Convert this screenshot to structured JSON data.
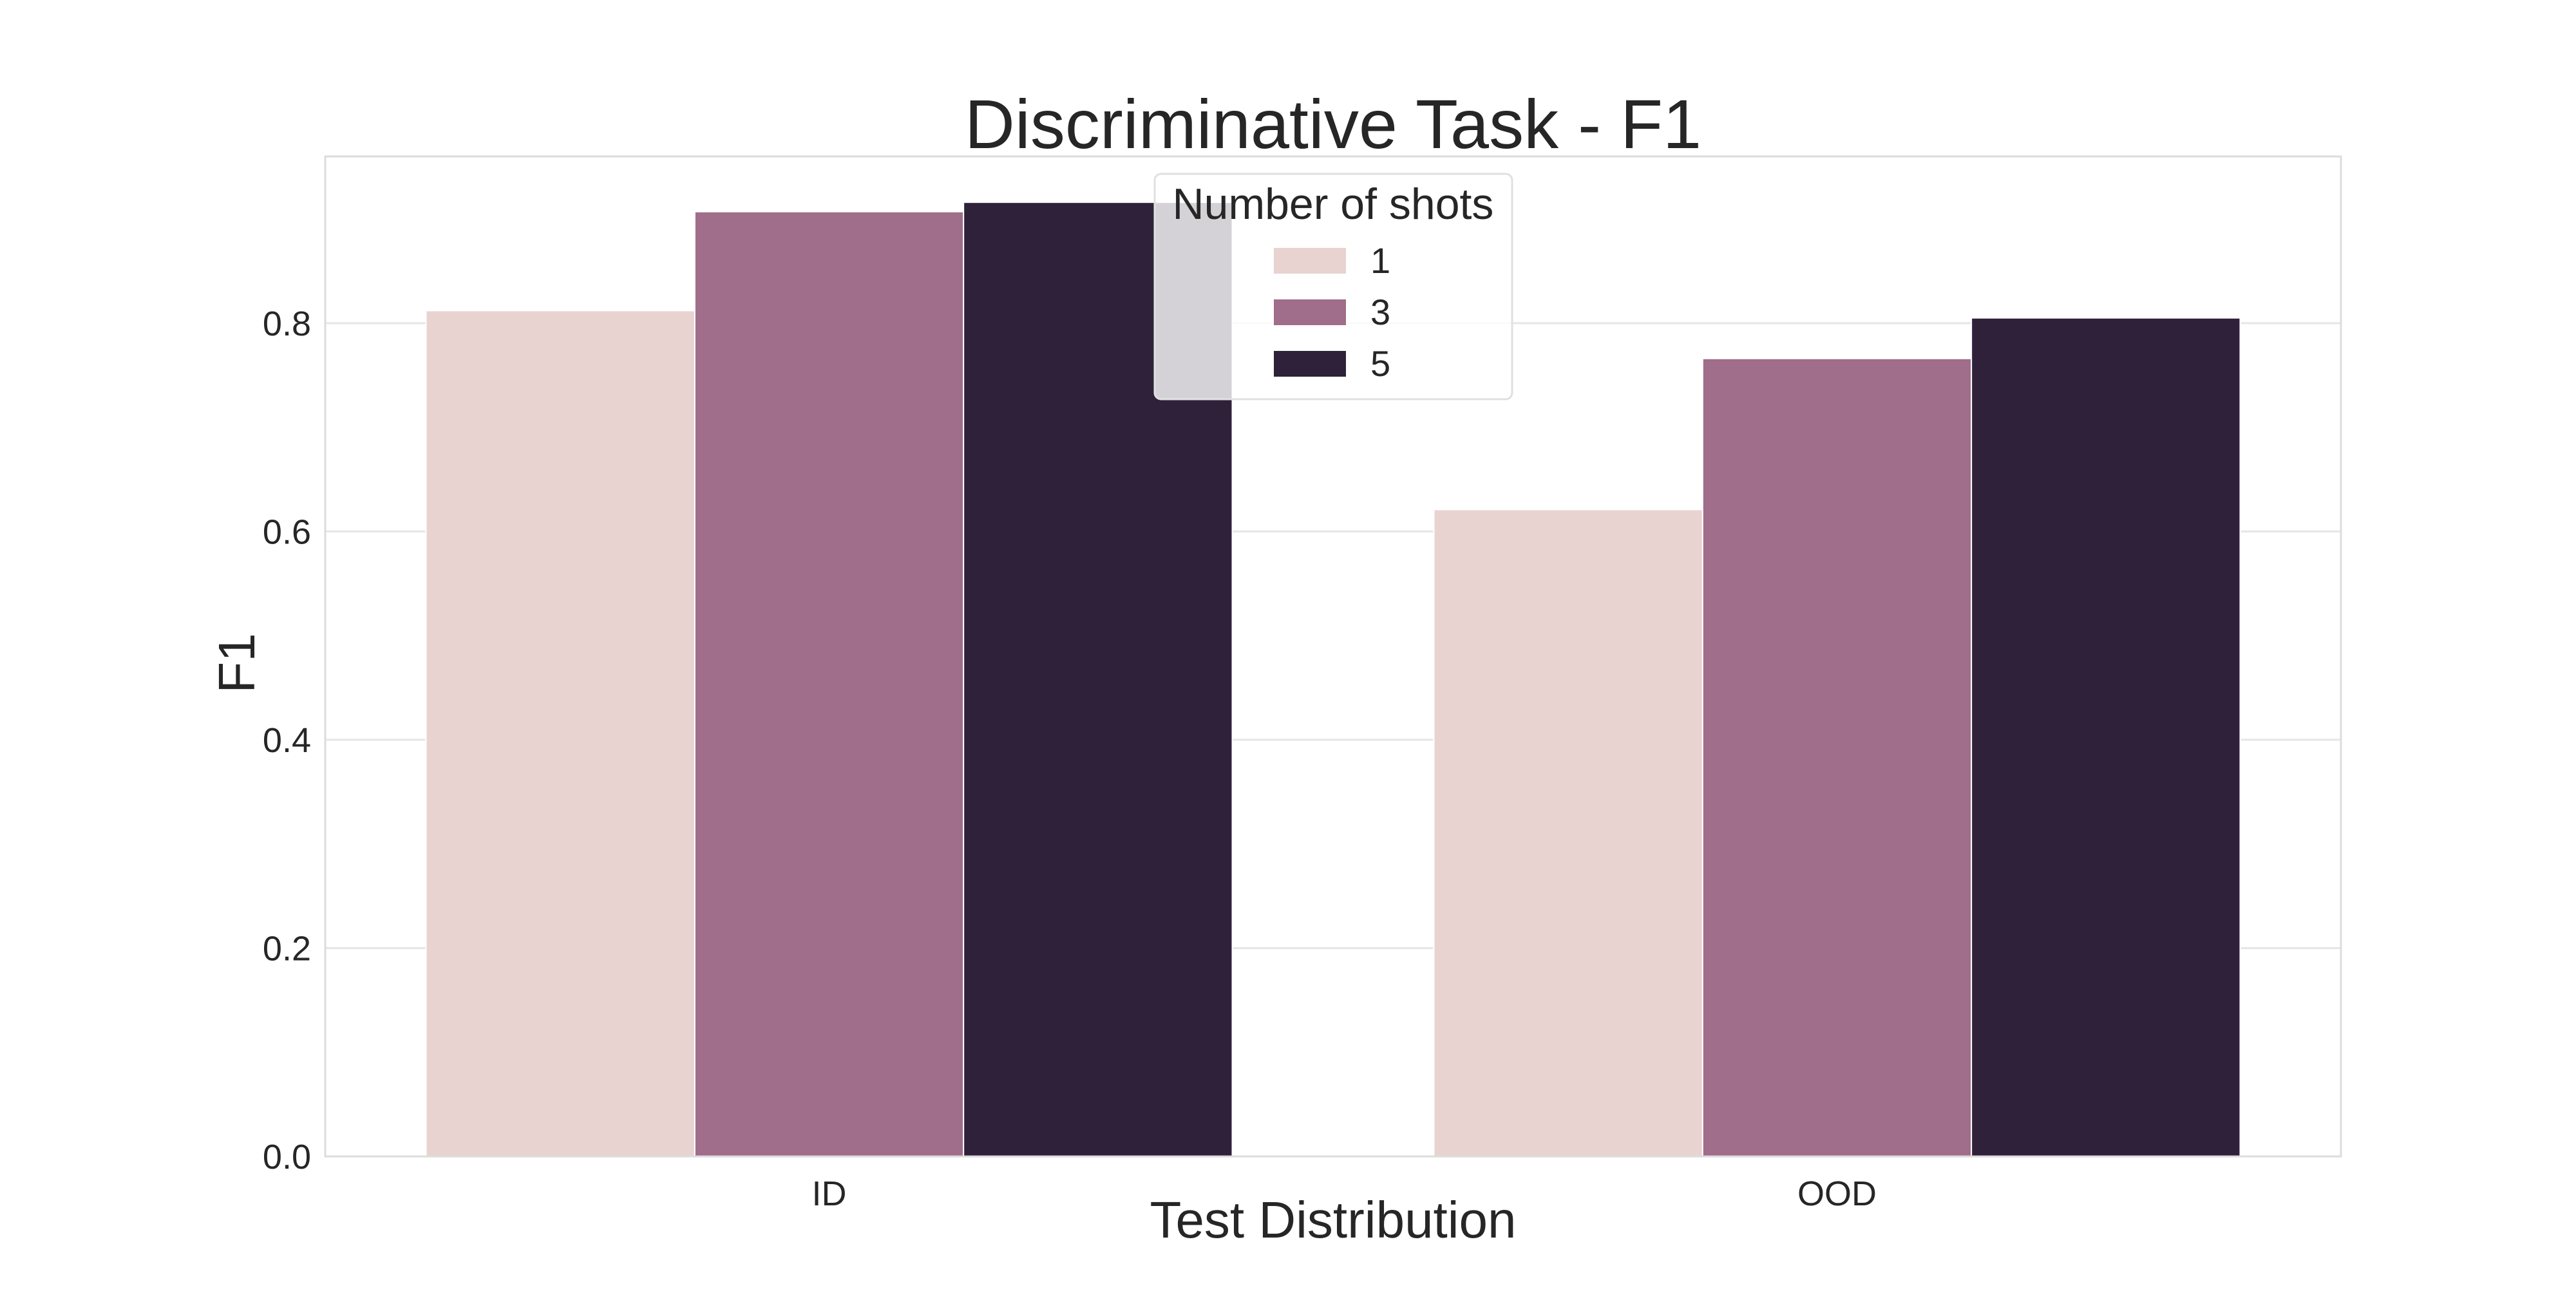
{
  "chart_data": {
    "type": "bar",
    "title": "Discriminative Task - F1",
    "xlabel": "Test Distribution",
    "ylabel": "F1",
    "categories": [
      "ID",
      "OOD"
    ],
    "series": [
      {
        "name": "1",
        "values": [
          0.812,
          0.621
        ],
        "color": "#e8d3d0"
      },
      {
        "name": "3",
        "values": [
          0.907,
          0.766
        ],
        "color": "#a06d8b"
      },
      {
        "name": "5",
        "values": [
          0.916,
          0.805
        ],
        "color": "#2e2139"
      }
    ],
    "ylim": [
      0,
      0.96
    ],
    "yticks": [
      0.0,
      0.2,
      0.4,
      0.6,
      0.8
    ],
    "ytick_labels": [
      "0.0",
      "0.2",
      "0.4",
      "0.6",
      "0.8"
    ],
    "grid": true,
    "legend": {
      "title": "Number of shots",
      "placement": "upper-center"
    }
  }
}
